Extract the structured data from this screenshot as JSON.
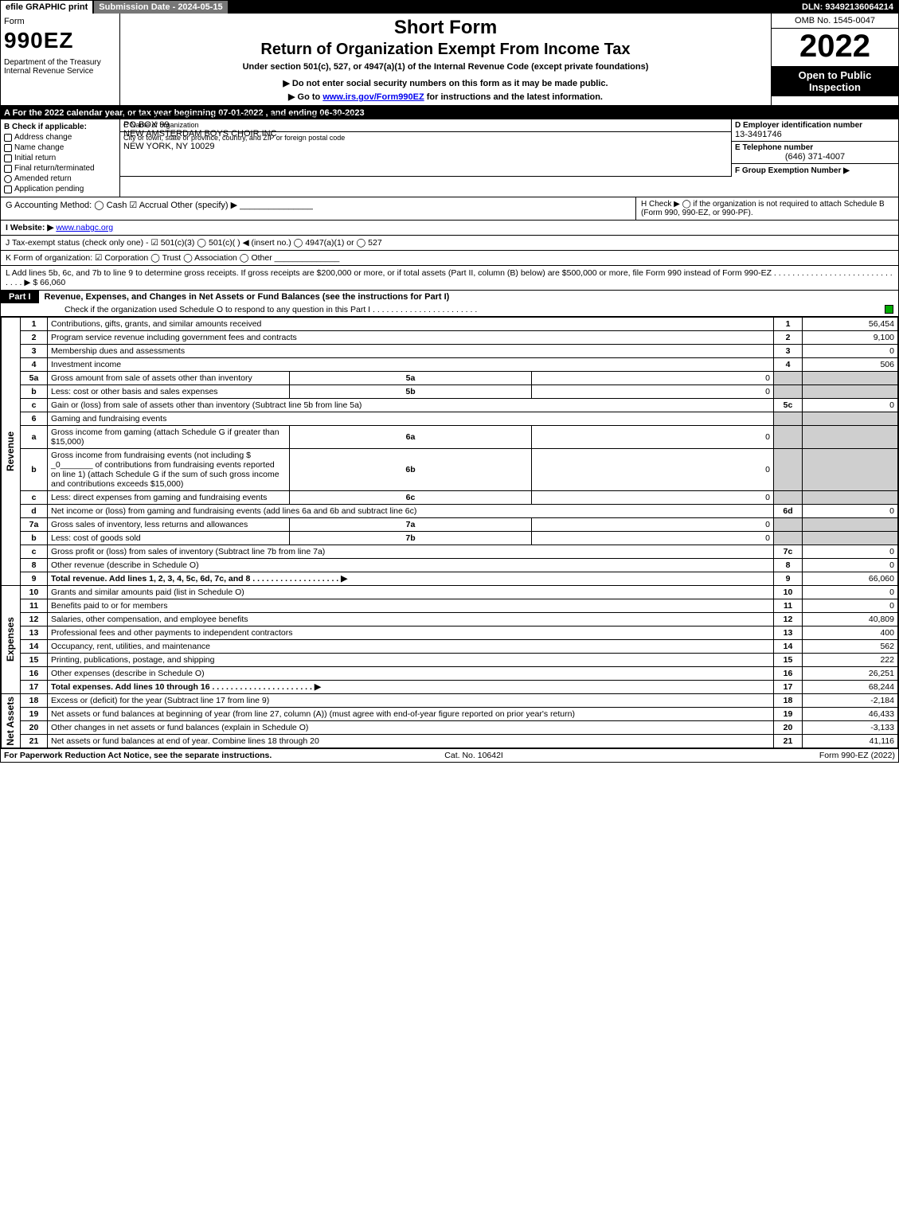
{
  "topbar": {
    "efile": "efile GRAPHIC print",
    "submission": "Submission Date - 2024-05-15",
    "dln": "DLN: 93492136064214"
  },
  "header": {
    "form_word": "Form",
    "form_no": "990EZ",
    "dept": "Department of the Treasury\nInternal Revenue Service",
    "title1": "Short Form",
    "title2": "Return of Organization Exempt From Income Tax",
    "subtitle": "Under section 501(c), 527, or 4947(a)(1) of the Internal Revenue Code (except private foundations)",
    "note1": "▶ Do not enter social security numbers on this form as it may be made public.",
    "note2_pre": "▶ Go to ",
    "note2_link": "www.irs.gov/Form990EZ",
    "note2_post": " for instructions and the latest information.",
    "omb": "OMB No. 1545-0047",
    "year": "2022",
    "inspect": "Open to Public Inspection"
  },
  "secA": "A  For the 2022 calendar year, or tax year beginning 07-01-2022 , and ending 06-30-2023",
  "boxB": {
    "label": "B  Check if applicable:",
    "items": [
      "Address change",
      "Name change",
      "Initial return",
      "Final return/terminated",
      "Amended return",
      "Application pending"
    ]
  },
  "boxC": {
    "name_lbl": "C Name of organization",
    "name": "NEW AMSTERDAM BOYS CHOIR INC",
    "addr_lbl": "Number and street (or P. O. box, if mail is not delivered to street address)",
    "addr": "PO BOX 99",
    "room_lbl": "Room/suite",
    "city_lbl": "City or town, state or province, country, and ZIP or foreign postal code",
    "city": "NEW YORK, NY  10029"
  },
  "boxD": {
    "lbl": "D Employer identification number",
    "val": "13-3491746"
  },
  "boxE": {
    "lbl": "E Telephone number",
    "val": "(646) 371-4007"
  },
  "boxF": {
    "lbl": "F Group Exemption Number   ▶",
    "val": ""
  },
  "rowG": "G Accounting Method:   ◯ Cash   ☑ Accrual   Other (specify) ▶ _______________",
  "rowH": "H   Check ▶  ◯  if the organization is not required to attach Schedule B (Form 990, 990-EZ, or 990-PF).",
  "rowI_pre": "I Website: ▶",
  "rowI_link": "www.nabgc.org",
  "rowJ": "J Tax-exempt status (check only one) -  ☑ 501(c)(3)  ◯ 501(c)(  ) ◀ (insert no.)  ◯ 4947(a)(1) or  ◯ 527",
  "rowK": "K Form of organization:   ☑ Corporation   ◯ Trust   ◯ Association   ◯ Other  ______________",
  "rowL": "L Add lines 5b, 6c, and 7b to line 9 to determine gross receipts. If gross receipts are $200,000 or more, or if total assets (Part II, column (B) below) are $500,000 or more, file Form 990 instead of Form 990-EZ  .  .  .  .  .  .  .  .  .  .  .  .  .  .  .  .  .  .  .  .  .  .  .  .  .  .  .  .  .  .  ▶ $ 66,060",
  "part1": {
    "tag": "Part I",
    "title": "Revenue, Expenses, and Changes in Net Assets or Fund Balances (see the instructions for Part I)",
    "sub": "Check if the organization used Schedule O to respond to any question in this Part I .  .  .  .  .  .  .  .  .  .  .  .  .  .  .  .  .  .  .  .  .  .  ."
  },
  "groups": [
    {
      "key": "Revenue",
      "rows": [
        {
          "n": "1",
          "d": "Contributions, gifts, grants, and similar amounts received",
          "box": "1",
          "amt": "56,454"
        },
        {
          "n": "2",
          "d": "Program service revenue including government fees and contracts",
          "box": "2",
          "amt": "9,100"
        },
        {
          "n": "3",
          "d": "Membership dues and assessments",
          "box": "3",
          "amt": "0"
        },
        {
          "n": "4",
          "d": "Investment income",
          "box": "4",
          "amt": "506"
        },
        {
          "n": "5a",
          "d": "Gross amount from sale of assets other than inventory",
          "sub": "5a",
          "subamt": "0"
        },
        {
          "n": "b",
          "d": "Less: cost or other basis and sales expenses",
          "sub": "5b",
          "subamt": "0"
        },
        {
          "n": "c",
          "d": "Gain or (loss) from sale of assets other than inventory (Subtract line 5b from line 5a)",
          "box": "5c",
          "amt": "0"
        },
        {
          "n": "6",
          "d": "Gaming and fundraising events",
          "shade": true
        },
        {
          "n": "a",
          "d": "Gross income from gaming (attach Schedule G if greater than $15,000)",
          "sub": "6a",
          "subamt": "0"
        },
        {
          "n": "b",
          "d": "Gross income from fundraising events (not including $ _0_______ of contributions from fundraising events reported on line 1) (attach Schedule G if the sum of such gross income and contributions exceeds $15,000)",
          "sub": "6b",
          "subamt": "0"
        },
        {
          "n": "c",
          "d": "Less: direct expenses from gaming and fundraising events",
          "sub": "6c",
          "subamt": "0"
        },
        {
          "n": "d",
          "d": "Net income or (loss) from gaming and fundraising events (add lines 6a and 6b and subtract line 6c)",
          "box": "6d",
          "amt": "0"
        },
        {
          "n": "7a",
          "d": "Gross sales of inventory, less returns and allowances",
          "sub": "7a",
          "subamt": "0"
        },
        {
          "n": "b",
          "d": "Less: cost of goods sold",
          "sub": "7b",
          "subamt": "0"
        },
        {
          "n": "c",
          "d": "Gross profit or (loss) from sales of inventory (Subtract line 7b from line 7a)",
          "box": "7c",
          "amt": "0"
        },
        {
          "n": "8",
          "d": "Other revenue (describe in Schedule O)",
          "box": "8",
          "amt": "0"
        },
        {
          "n": "9",
          "d": "Total revenue. Add lines 1, 2, 3, 4, 5c, 6d, 7c, and 8   .  .  .  .  .  .  .  .  .  .  .  .  .  .  .  .  .  .  .  ▶",
          "box": "9",
          "amt": "66,060",
          "bold": true
        }
      ]
    },
    {
      "key": "Expenses",
      "rows": [
        {
          "n": "10",
          "d": "Grants and similar amounts paid (list in Schedule O)",
          "box": "10",
          "amt": "0"
        },
        {
          "n": "11",
          "d": "Benefits paid to or for members",
          "box": "11",
          "amt": "0"
        },
        {
          "n": "12",
          "d": "Salaries, other compensation, and employee benefits",
          "box": "12",
          "amt": "40,809"
        },
        {
          "n": "13",
          "d": "Professional fees and other payments to independent contractors",
          "box": "13",
          "amt": "400"
        },
        {
          "n": "14",
          "d": "Occupancy, rent, utilities, and maintenance",
          "box": "14",
          "amt": "562"
        },
        {
          "n": "15",
          "d": "Printing, publications, postage, and shipping",
          "box": "15",
          "amt": "222"
        },
        {
          "n": "16",
          "d": "Other expenses (describe in Schedule O)",
          "box": "16",
          "amt": "26,251"
        },
        {
          "n": "17",
          "d": "Total expenses. Add lines 10 through 16   .  .  .  .  .  .  .  .  .  .  .  .  .  .  .  .  .  .  .  .  .  .  ▶",
          "box": "17",
          "amt": "68,244",
          "bold": true
        }
      ]
    },
    {
      "key": "Net Assets",
      "rows": [
        {
          "n": "18",
          "d": "Excess or (deficit) for the year (Subtract line 17 from line 9)",
          "box": "18",
          "amt": "-2,184"
        },
        {
          "n": "19",
          "d": "Net assets or fund balances at beginning of year (from line 27, column (A)) (must agree with end-of-year figure reported on prior year's return)",
          "box": "19",
          "amt": "46,433"
        },
        {
          "n": "20",
          "d": "Other changes in net assets or fund balances (explain in Schedule O)",
          "box": "20",
          "amt": "-3,133"
        },
        {
          "n": "21",
          "d": "Net assets or fund balances at end of year. Combine lines 18 through 20",
          "box": "21",
          "amt": "41,116"
        }
      ]
    }
  ],
  "footer": {
    "left": "For Paperwork Reduction Act Notice, see the separate instructions.",
    "mid": "Cat. No. 10642I",
    "right": "Form 990-EZ (2022)"
  }
}
